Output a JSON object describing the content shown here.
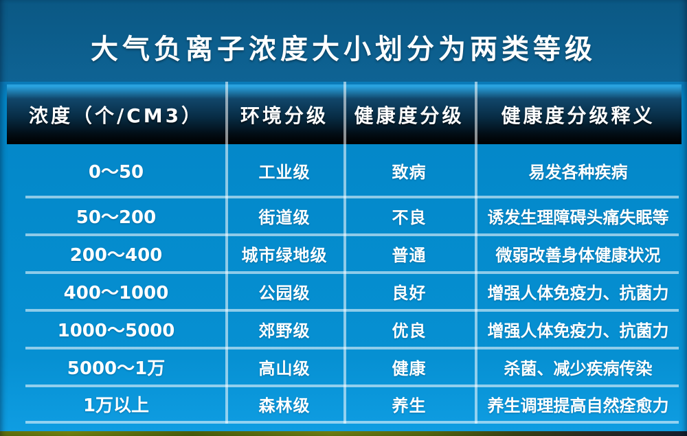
{
  "title": "大气负离子浓度大小划分为两类等级",
  "chart_data": {
    "type": "table",
    "title": "大气负离子浓度大小划分为两类等级",
    "columns": [
      "浓度（个/CM3）",
      "环境分级",
      "健康度分级",
      "健康度分级释义"
    ],
    "rows": [
      [
        "0～50",
        "工业级",
        "致病",
        "易发各种疾病"
      ],
      [
        "50～200",
        "街道级",
        "不良",
        "诱发生理障碍头痛失眠等"
      ],
      [
        "200～400",
        "城市绿地级",
        "普通",
        "微弱改善身体健康状况"
      ],
      [
        "400～1000",
        "公园级",
        "良好",
        "增强人体免疫力、抗菌力"
      ],
      [
        "1000～5000",
        "郊野级",
        "优良",
        "增强人体免疫力、抗菌力"
      ],
      [
        "5000～1万",
        "高山级",
        "健康",
        "杀菌、减少疾病传染"
      ],
      [
        "1万以上",
        "森林级",
        "养生",
        "养生调理提高自然痊愈力"
      ]
    ]
  },
  "colors": {
    "top_background": "#0d5e8e",
    "table_background": "#0690d2",
    "header_gradient_top": "#29a2de",
    "header_gradient_bottom": "#000000",
    "divider": "rgba(255,255,255,0.55)",
    "text": "#ffffff",
    "bottom_strip_green": "#5e6f0e",
    "bottom_strip_dark": "#161f2e"
  }
}
